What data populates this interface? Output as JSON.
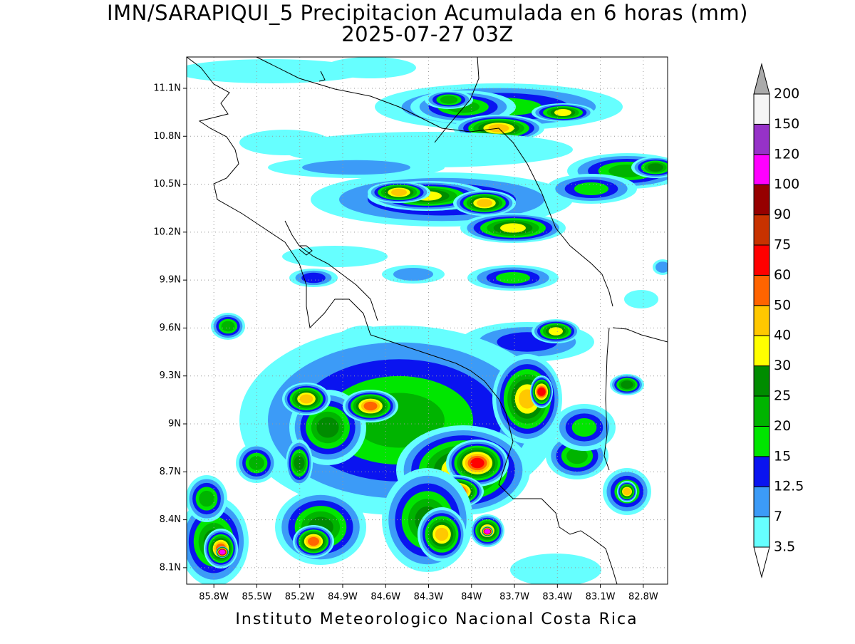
{
  "title": "IMN/SARAPIQUI_5 Precipitacion Acumulada en 6 horas (mm)",
  "subtitle": "2025-07-27 03Z",
  "footer": "Instituto Meteorologico Nacional Costa Rica",
  "map": {
    "lat_range": [
      7.997,
      11.296
    ],
    "lon_range": [
      -85.99,
      -82.63
    ],
    "lat_ticks": [
      {
        "value": 11.1,
        "label": "11.1N"
      },
      {
        "value": 10.8,
        "label": "10.8N"
      },
      {
        "value": 10.5,
        "label": "10.5N"
      },
      {
        "value": 10.2,
        "label": "10.2N"
      },
      {
        "value": 9.9,
        "label": "9.9N"
      },
      {
        "value": 9.6,
        "label": "9.6N"
      },
      {
        "value": 9.3,
        "label": "9.3N"
      },
      {
        "value": 9,
        "label": "9N"
      },
      {
        "value": 8.7,
        "label": "8.7N"
      },
      {
        "value": 8.4,
        "label": "8.4N"
      },
      {
        "value": 8.1,
        "label": "8.1N"
      }
    ],
    "lon_ticks": [
      {
        "value": -85.8,
        "label": "85.8W"
      },
      {
        "value": -85.5,
        "label": "85.5W"
      },
      {
        "value": -85.2,
        "label": "85.2W"
      },
      {
        "value": -84.9,
        "label": "84.9W"
      },
      {
        "value": -84.6,
        "label": "84.6W"
      },
      {
        "value": -84.3,
        "label": "84.3W"
      },
      {
        "value": -84,
        "label": "84W"
      },
      {
        "value": -83.7,
        "label": "83.7W"
      },
      {
        "value": -83.4,
        "label": "83.4W"
      },
      {
        "value": -83.1,
        "label": "83.1W"
      },
      {
        "value": -82.8,
        "label": "82.8W"
      }
    ],
    "grid": true
  },
  "colorbar": {
    "levels": [
      3.5,
      7,
      12.5,
      15,
      20,
      25,
      30,
      40,
      50,
      60,
      75,
      90,
      100,
      120,
      150,
      200
    ],
    "colors": [
      "#66ffff",
      "#3c9bf7",
      "#0a14f0",
      "#00e600",
      "#00b400",
      "#008c00",
      "#ffff00",
      "#ffc800",
      "#ff6400",
      "#ff0000",
      "#c83200",
      "#960000",
      "#ff00ff",
      "#9632c8",
      "#f5f5f5"
    ],
    "under_color": "#ffffff",
    "over_color": "#aaaaaa"
  }
}
